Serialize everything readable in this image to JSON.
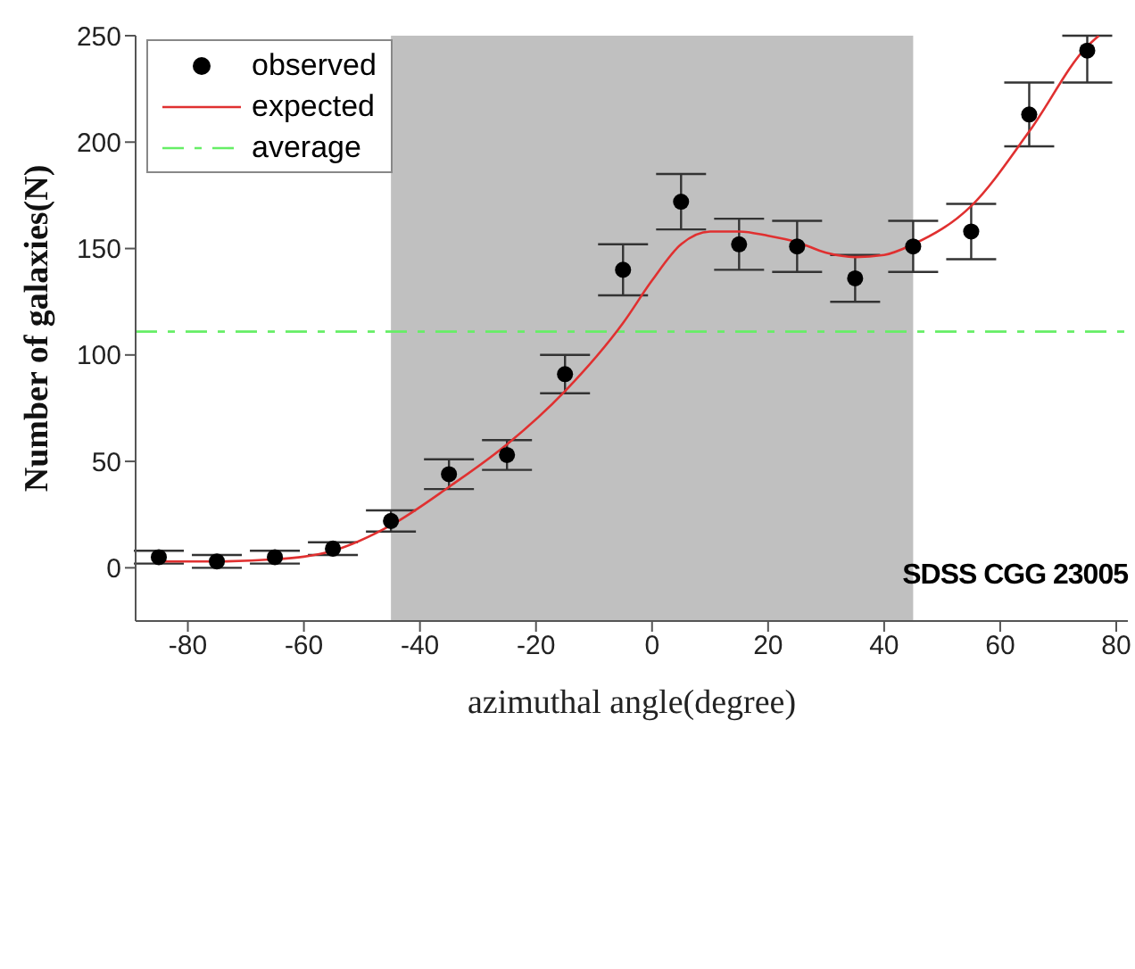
{
  "chart_data": {
    "type": "scatter",
    "xlabel": "azimuthal angle(degree)",
    "ylabel": "Number of galaxies(N)",
    "xlim": [
      -89,
      82
    ],
    "xticks": [
      -80,
      -60,
      -40,
      -20,
      0,
      20,
      40,
      60,
      80
    ],
    "ylim": [
      -25,
      250
    ],
    "yticks": [
      0,
      50,
      100,
      150,
      200,
      250
    ],
    "grid": false,
    "legend": "top left",
    "series": [
      {
        "name": "observed",
        "marker": "circle",
        "color": "#000000",
        "x": [
          -85,
          -75,
          -65,
          -55,
          -45,
          -35,
          -25,
          -15,
          -5,
          5,
          15,
          25,
          35,
          45,
          55,
          65,
          75
        ],
        "values": [
          5,
          3,
          5,
          9,
          22,
          44,
          53,
          91,
          140,
          172,
          152,
          151,
          136,
          151,
          158,
          213,
          243
        ],
        "errors": [
          3,
          3,
          3,
          3,
          5,
          7,
          7,
          9,
          12,
          13,
          12,
          12,
          11,
          12,
          13,
          15,
          [
            228,
            250
          ]
        ]
      },
      {
        "name": "expected",
        "type": "line",
        "marker": "none",
        "color": "#e03030",
        "line_style": "solid",
        "x": [
          -85,
          -75,
          -65,
          -55,
          -45,
          -35,
          -25,
          -15,
          -5,
          0,
          5,
          10,
          15,
          20,
          25,
          30,
          35,
          40,
          45,
          55,
          65,
          75,
          77
        ],
        "values": [
          3,
          3,
          4,
          8,
          20,
          38,
          58,
          83,
          115,
          135,
          152,
          158,
          158,
          156,
          153,
          148,
          146,
          147,
          152,
          170,
          205,
          245,
          250
        ]
      }
    ],
    "ref_lines": [
      {
        "axis": "y",
        "value": 111,
        "label": "average",
        "color": "#66ee66",
        "line_style": "dashed"
      }
    ],
    "bands": [
      {
        "axis": "x",
        "from": -45,
        "to": 45,
        "color": "#c0c0c0"
      }
    ],
    "annotations": [
      "SDSS CGG 23005"
    ]
  }
}
